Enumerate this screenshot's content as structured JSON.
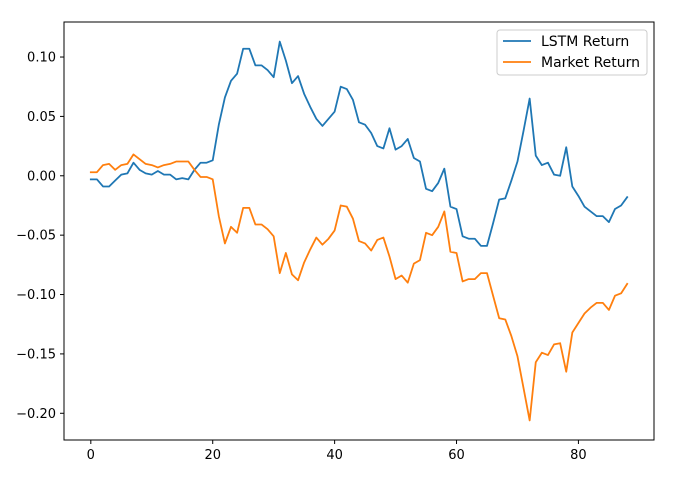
{
  "chart_data": {
    "type": "line",
    "title": "",
    "xlabel": "",
    "ylabel": "",
    "xlim": [
      -4.4,
      92.4
    ],
    "ylim": [
      -0.2225,
      0.1295
    ],
    "xticks": [
      0,
      20,
      40,
      60,
      80
    ],
    "yticks": [
      -0.2,
      -0.15,
      -0.1,
      -0.05,
      0.0,
      0.05,
      0.1
    ],
    "ytick_labels": [
      "−0.20",
      "−0.15",
      "−0.10",
      "−0.05",
      "0.00",
      "0.05",
      "0.10"
    ],
    "grid": false,
    "legend_position": "top-right",
    "series": [
      {
        "name": "LSTM Return",
        "color": "#1f77b4",
        "values": [
          -0.003,
          -0.003,
          -0.009,
          -0.009,
          -0.004,
          0.001,
          0.002,
          0.011,
          0.005,
          0.002,
          0.001,
          0.004,
          0.001,
          0.001,
          -0.003,
          -0.002,
          -0.003,
          0.005,
          0.011,
          0.011,
          0.013,
          0.043,
          0.066,
          0.08,
          0.086,
          0.107,
          0.107,
          0.093,
          0.093,
          0.089,
          0.083,
          0.113,
          0.097,
          0.078,
          0.084,
          0.069,
          0.058,
          0.048,
          0.042,
          0.048,
          0.054,
          0.075,
          0.073,
          0.064,
          0.045,
          0.043,
          0.036,
          0.025,
          0.023,
          0.04,
          0.022,
          0.025,
          0.031,
          0.015,
          0.012,
          -0.011,
          -0.013,
          -0.006,
          0.006,
          -0.026,
          -0.028,
          -0.051,
          -0.053,
          -0.053,
          -0.059,
          -0.059,
          -0.04,
          -0.02,
          -0.019,
          -0.004,
          0.012,
          0.038,
          0.065,
          0.017,
          0.009,
          0.011,
          0.001,
          0.0,
          0.024,
          -0.009,
          -0.017,
          -0.026,
          -0.03,
          -0.034,
          -0.034,
          -0.039,
          -0.028,
          -0.025,
          -0.018
        ]
      },
      {
        "name": "Market Return",
        "color": "#ff7f0e",
        "values": [
          0.003,
          0.003,
          0.009,
          0.01,
          0.005,
          0.009,
          0.01,
          0.018,
          0.014,
          0.01,
          0.009,
          0.007,
          0.009,
          0.01,
          0.012,
          0.012,
          0.012,
          0.005,
          -0.001,
          -0.001,
          -0.003,
          -0.034,
          -0.057,
          -0.043,
          -0.048,
          -0.027,
          -0.027,
          -0.041,
          -0.041,
          -0.045,
          -0.051,
          -0.082,
          -0.065,
          -0.083,
          -0.088,
          -0.073,
          -0.062,
          -0.052,
          -0.058,
          -0.053,
          -0.046,
          -0.025,
          -0.026,
          -0.036,
          -0.055,
          -0.057,
          -0.063,
          -0.054,
          -0.052,
          -0.068,
          -0.087,
          -0.084,
          -0.09,
          -0.074,
          -0.071,
          -0.048,
          -0.05,
          -0.043,
          -0.03,
          -0.064,
          -0.065,
          -0.089,
          -0.087,
          -0.087,
          -0.082,
          -0.082,
          -0.101,
          -0.12,
          -0.121,
          -0.135,
          -0.152,
          -0.179,
          -0.206,
          -0.157,
          -0.149,
          -0.151,
          -0.142,
          -0.141,
          -0.165,
          -0.132,
          -0.124,
          -0.116,
          -0.111,
          -0.107,
          -0.107,
          -0.113,
          -0.101,
          -0.099,
          -0.091
        ]
      }
    ]
  }
}
